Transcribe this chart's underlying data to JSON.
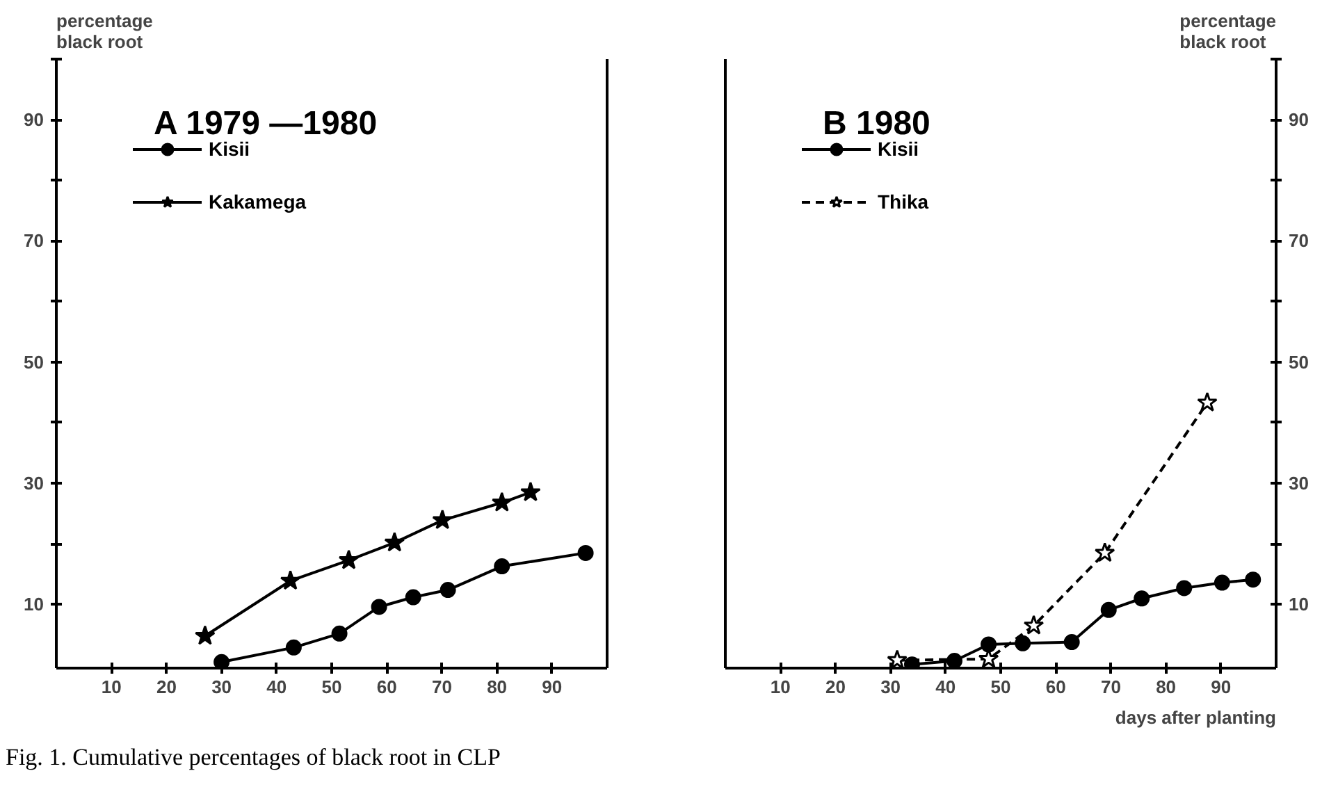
{
  "chart_data": [
    {
      "type": "line",
      "title": "A 1979 —1980",
      "ylabel": "percentage\nblack root",
      "xlim": [
        0,
        100
      ],
      "xticks": [
        10,
        20,
        30,
        40,
        50,
        60,
        70,
        80,
        90
      ],
      "ylim": [
        -0.5,
        100
      ],
      "yticks": [
        10,
        {
          "value": 20,
          "label": null
        },
        30,
        {
          "value": 40,
          "label": null
        },
        50,
        {
          "value": 60,
          "label": null
        },
        70,
        {
          "value": 80,
          "label": null
        },
        90,
        {
          "value": 100,
          "label": null
        }
      ],
      "legend": "top left",
      "grid": false,
      "series": [
        {
          "name": "Kisii",
          "color": "#000000",
          "marker": "circle",
          "line_style": "solid",
          "x": [
            30.0,
            43.1,
            51.4,
            58.6,
            64.8,
            71.1,
            80.9,
            96.1
          ],
          "values": [
            0.5,
            2.9,
            5.2,
            9.6,
            11.2,
            12.4,
            16.3,
            18.5
          ]
        },
        {
          "name": "Kakamega",
          "color": "#000000",
          "marker": "star",
          "line_style": "solid",
          "x": [
            27.0,
            42.5,
            53.1,
            61.4,
            70.1,
            80.9,
            86.1
          ],
          "values": [
            4.8,
            13.9,
            17.3,
            20.2,
            23.9,
            26.8,
            28.5
          ]
        }
      ]
    },
    {
      "type": "line",
      "title": "B 1980",
      "y2label": "percentage\nblack root",
      "xlabel": "days after planting",
      "annotations": [
        "Fig. 1. Cumulative percentages of black root in CLP"
      ],
      "xlim": [
        0,
        100
      ],
      "xticks": [
        10,
        20,
        30,
        40,
        50,
        60,
        70,
        80,
        90
      ],
      "y2lim": [
        -0.5,
        100
      ],
      "y2ticks": [
        10,
        {
          "value": 20,
          "label": null
        },
        30,
        {
          "value": 40,
          "label": null
        },
        50,
        {
          "value": 60,
          "label": null
        },
        70,
        {
          "value": 80,
          "label": null
        },
        90,
        {
          "value": 100,
          "label": null
        }
      ],
      "legend": "top left",
      "grid": false,
      "series": [
        {
          "name": "Kisii",
          "color": "#000000",
          "marker": "circle",
          "line_style": "solid",
          "axis": "y2",
          "x": [
            33.9,
            41.6,
            47.8,
            54.0,
            62.9,
            69.6,
            75.6,
            83.3,
            90.2,
            95.8
          ],
          "values": [
            0.1,
            0.7,
            3.4,
            3.6,
            3.8,
            9.1,
            11.0,
            12.7,
            13.6,
            14.1
          ]
        },
        {
          "name": "Thika",
          "color": "#000000",
          "marker": "star_open",
          "line_style": "dashed",
          "axis": "y2",
          "x": [
            31.2,
            47.8,
            56.0,
            68.9,
            87.5
          ],
          "values": [
            0.8,
            1.0,
            6.5,
            18.5,
            43.3
          ]
        }
      ]
    }
  ]
}
